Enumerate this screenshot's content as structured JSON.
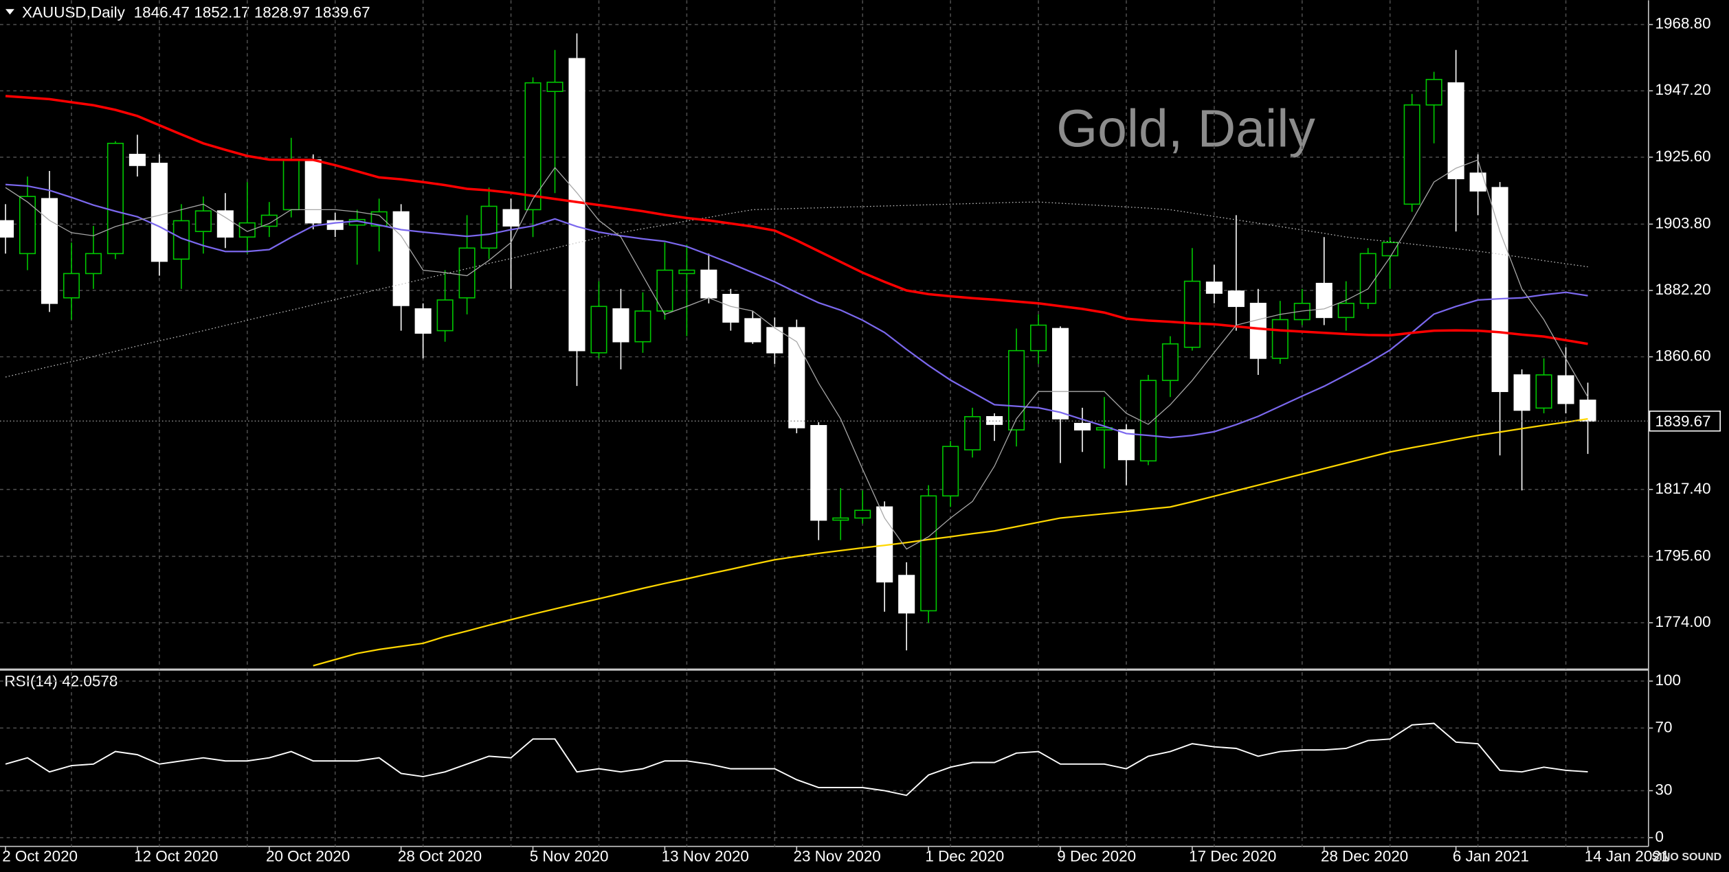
{
  "header": {
    "symbol": "XAUUSD,Daily"
  },
  "watermark": "Gold, Daily",
  "logo": "SINO SOUND",
  "chart_data": [
    {
      "type": "candlestick",
      "title": "XAUUSD,Daily",
      "categories": [
        "2 Oct 2020",
        null,
        null,
        null,
        null,
        null,
        "12 Oct 2020",
        null,
        null,
        null,
        null,
        null,
        "20 Oct 2020",
        null,
        null,
        null,
        null,
        null,
        "28 Oct 2020",
        null,
        null,
        null,
        null,
        null,
        "5 Nov 2020",
        null,
        null,
        null,
        null,
        null,
        "13 Nov 2020",
        null,
        null,
        null,
        null,
        null,
        "23 Nov 2020",
        null,
        null,
        null,
        null,
        null,
        "1 Dec 2020",
        null,
        null,
        null,
        null,
        null,
        "9 Dec 2020",
        null,
        null,
        null,
        null,
        null,
        "17 Dec 2020",
        null,
        null,
        null,
        null,
        null,
        "28 Dec 2020",
        null,
        null,
        null,
        null,
        null,
        "6 Jan 2021",
        null,
        null,
        null,
        null,
        null,
        "14 Jan 2021"
      ],
      "open": [
        1904.9,
        1894.2,
        1912.1,
        1879.8,
        1887.7,
        1894.2,
        1926.5,
        1923.6,
        1892.4,
        1901.4,
        1908.1,
        1899.6,
        1903.1,
        1908.5,
        1924.7,
        1904.9,
        1903.5,
        1903.2,
        1907.8,
        1876.2,
        1869.1,
        1879.8,
        1896.0,
        1908.5,
        1908.5,
        1947.0,
        1957.7,
        1861.9,
        1876.2,
        1865.5,
        1875.5,
        1887.7,
        1888.8,
        1880.9,
        1873.0,
        1870.1,
        1870.1,
        1838.2,
        1807.4,
        1808.1,
        1811.7,
        1789.4,
        1777.9,
        1815.3,
        1830.3,
        1841.1,
        1836.8,
        1862.6,
        1869.8,
        1838.9,
        1836.8,
        1836.8,
        1826.7,
        1852.9,
        1863.7,
        1884.9,
        1882.0,
        1878.0,
        1860.1,
        1872.7,
        1884.5,
        1873.4,
        1878.0,
        1893.5,
        1910.3,
        1942.6,
        1949.8,
        1920.4,
        1915.7,
        1854.7,
        1843.9,
        1854.4,
        1846.47
      ],
      "high": [
        1910.3,
        1919.3,
        1921.1,
        1897.8,
        1903.2,
        1930.8,
        1932.9,
        1926.5,
        1910.3,
        1912.8,
        1913.9,
        1917.5,
        1911.0,
        1931.9,
        1926.5,
        1907.5,
        1908.5,
        1912.1,
        1910.3,
        1878.0,
        1888.8,
        1906.7,
        1915.7,
        1912.1,
        1951.6,
        1960.5,
        1965.9,
        1885.2,
        1882.7,
        1881.6,
        1897.8,
        1897.1,
        1894.2,
        1882.7,
        1875.5,
        1873.4,
        1872.7,
        1839.3,
        1817.8,
        1817.1,
        1813.5,
        1793.7,
        1818.8,
        1833.2,
        1844.0,
        1842.2,
        1869.8,
        1874.4,
        1870.5,
        1844.0,
        1847.5,
        1838.6,
        1854.7,
        1867.3,
        1896.0,
        1890.6,
        1906.7,
        1882.7,
        1878.8,
        1882.7,
        1899.6,
        1885.2,
        1896.0,
        1899.6,
        1946.2,
        1953.4,
        1960.5,
        1926.5,
        1917.5,
        1856.5,
        1860.1,
        1863.7,
        1852.17
      ],
      "low": [
        1894.2,
        1888.8,
        1875.2,
        1872.7,
        1882.7,
        1892.4,
        1919.3,
        1887.0,
        1882.7,
        1894.2,
        1896.0,
        1894.2,
        1899.6,
        1906.0,
        1902.1,
        1899.6,
        1890.6,
        1894.9,
        1869.1,
        1860.1,
        1865.5,
        1874.4,
        1892.4,
        1882.7,
        1899.6,
        1913.9,
        1851.1,
        1860.1,
        1856.5,
        1861.9,
        1872.7,
        1867.3,
        1878.0,
        1869.1,
        1864.8,
        1858.3,
        1835.7,
        1800.9,
        1800.9,
        1806.3,
        1777.6,
        1765.0,
        1774.0,
        1811.7,
        1827.8,
        1833.2,
        1831.4,
        1858.3,
        1826.0,
        1829.6,
        1824.2,
        1818.8,
        1825.3,
        1847.5,
        1862.6,
        1878.0,
        1869.1,
        1854.7,
        1858.3,
        1870.9,
        1870.9,
        1869.1,
        1876.2,
        1882.7,
        1907.8,
        1930.1,
        1901.4,
        1906.7,
        1828.5,
        1817.1,
        1842.2,
        1842.2,
        1828.97
      ],
      "close": [
        1899.6,
        1912.8,
        1878.0,
        1887.7,
        1894.2,
        1930.1,
        1922.9,
        1891.7,
        1904.9,
        1908.1,
        1899.6,
        1904.2,
        1906.7,
        1924.7,
        1904.2,
        1902.1,
        1905.3,
        1907.8,
        1877.3,
        1868.3,
        1879.1,
        1896.0,
        1909.6,
        1903.2,
        1949.8,
        1950.0,
        1862.6,
        1877.0,
        1865.5,
        1875.5,
        1888.8,
        1888.8,
        1879.8,
        1871.9,
        1865.5,
        1861.9,
        1837.5,
        1807.4,
        1808.1,
        1810.6,
        1787.3,
        1777.2,
        1815.3,
        1831.4,
        1841.1,
        1838.6,
        1862.6,
        1870.9,
        1840.4,
        1836.8,
        1837.5,
        1827.1,
        1852.9,
        1864.8,
        1885.2,
        1881.3,
        1877.0,
        1860.1,
        1872.7,
        1878.0,
        1873.4,
        1878.0,
        1894.2,
        1897.8,
        1942.6,
        1950.9,
        1918.6,
        1914.6,
        1849.3,
        1843.2,
        1854.7,
        1845.4,
        1839.67
      ],
      "up_color": "#00c800",
      "down_color": "#ffffff",
      "lines": [
        {
          "color": "#c0c0c0",
          "width": 0.8,
          "style": "dotted",
          "values": [
            1854.0,
            1855.7,
            1857.4,
            1859.0,
            1860.7,
            1862.4,
            1864.1,
            1865.8,
            1867.4,
            1869.1,
            1870.8,
            1872.5,
            1874.2,
            1875.8,
            1877.5,
            1879.2,
            1880.9,
            1882.6,
            1884.2,
            1885.9,
            1887.6,
            1889.3,
            1891.0,
            1892.6,
            1894.3,
            1896.0,
            1897.7,
            1899.4,
            1901.0,
            1902.3,
            1903.5,
            1904.8,
            1906.0,
            1907.3,
            1908.5,
            1908.7,
            1908.9,
            1909.1,
            1909.3,
            1909.5,
            1909.7,
            1909.9,
            1910.1,
            1910.3,
            1910.5,
            1910.7,
            1910.9,
            1911.0,
            1910.6,
            1910.2,
            1909.8,
            1909.4,
            1909.0,
            1908.5,
            1907.4,
            1906.3,
            1905.2,
            1904.1,
            1903.0,
            1901.9,
            1900.8,
            1899.6,
            1898.8,
            1898.1,
            1897.3,
            1896.5,
            1895.8,
            1895.0,
            1894.0,
            1893.0,
            1891.9,
            1890.9,
            1889.9
          ]
        },
        {
          "color": "#ffd700",
          "width": 1.4,
          "style": "solid",
          "values": [
            null,
            null,
            null,
            null,
            null,
            null,
            null,
            null,
            null,
            null,
            null,
            null,
            null,
            null,
            1760.0,
            1762.0,
            1764.0,
            1765.3,
            1766.3,
            1767.3,
            1769.5,
            1771.3,
            1773.2,
            1775.0,
            1776.8,
            1778.5,
            1780.2,
            1781.8,
            1783.5,
            1785.2,
            1786.8,
            1788.3,
            1789.9,
            1791.4,
            1793.0,
            1794.5,
            1795.6,
            1796.6,
            1797.5,
            1798.4,
            1799.2,
            1800.1,
            1801.1,
            1802.0,
            1803.0,
            1803.9,
            1805.3,
            1806.7,
            1808.1,
            1808.8,
            1809.5,
            1810.2,
            1811.0,
            1811.7,
            1813.4,
            1815.2,
            1817.0,
            1818.8,
            1820.6,
            1822.4,
            1824.2,
            1826.0,
            1827.8,
            1829.6,
            1831.0,
            1832.3,
            1833.7,
            1835.0,
            1836.1,
            1837.2,
            1838.3,
            1839.3,
            1840.4
          ]
        },
        {
          "color": "#7b68ee",
          "width": 1.4,
          "style": "solid",
          "values": [
            1916.7,
            1916.2,
            1914.8,
            1912.5,
            1910.0,
            1908.0,
            1906.2,
            1903.0,
            1899.2,
            1896.8,
            1894.9,
            1894.9,
            1895.5,
            1899.5,
            1903.2,
            1904.2,
            1904.8,
            1903.5,
            1902.0,
            1901.2,
            1900.5,
            1899.8,
            1900.5,
            1902.0,
            1903.2,
            1905.5,
            1903.0,
            1901.2,
            1900.0,
            1899.0,
            1898.2,
            1896.5,
            1893.8,
            1891.0,
            1888.0,
            1885.0,
            1881.5,
            1878.2,
            1875.8,
            1872.5,
            1868.5,
            1863.0,
            1857.8,
            1853.0,
            1849.0,
            1845.0,
            1844.5,
            1844.0,
            1842.5,
            1840.2,
            1838.0,
            1835.6,
            1835.0,
            1834.3,
            1835.0,
            1836.2,
            1838.5,
            1841.2,
            1844.5,
            1847.8,
            1851.0,
            1854.7,
            1858.5,
            1862.8,
            1868.5,
            1874.5,
            1877.0,
            1879.1,
            1879.5,
            1879.8,
            1880.8,
            1881.6,
            1880.5
          ]
        },
        {
          "color": "#ff0000",
          "width": 2.2,
          "style": "solid",
          "values": [
            1945.5,
            1945.0,
            1944.5,
            1943.5,
            1942.5,
            1941.0,
            1939.0,
            1936.0,
            1933.0,
            1930.1,
            1928.0,
            1926.0,
            1924.8,
            1924.7,
            1924.7,
            1923.0,
            1921.0,
            1919.0,
            1918.4,
            1917.5,
            1916.5,
            1915.3,
            1914.8,
            1914.0,
            1913.0,
            1912.0,
            1911.0,
            1910.0,
            1909.0,
            1908.0,
            1906.8,
            1905.8,
            1905.0,
            1904.0,
            1903.0,
            1901.7,
            1898.5,
            1895.0,
            1891.5,
            1888.0,
            1885.0,
            1882.2,
            1881.0,
            1880.3,
            1879.7,
            1879.2,
            1878.6,
            1878.0,
            1877.1,
            1876.2,
            1875.0,
            1873.0,
            1872.4,
            1872.0,
            1871.5,
            1871.2,
            1870.5,
            1869.8,
            1869.2,
            1868.8,
            1868.4,
            1868.0,
            1867.7,
            1867.6,
            1868.4,
            1869.1,
            1869.2,
            1869.1,
            1868.6,
            1867.8,
            1867.2,
            1866.0,
            1864.8
          ]
        },
        {
          "color": "#a8a8a8",
          "width": 0.8,
          "style": "solid",
          "values": [
            1915.7,
            1911,
            1905,
            1901,
            1900,
            1903,
            1905,
            1906.7,
            1908.5,
            1910.3,
            1906,
            1901.4,
            1904,
            1908.5,
            1908.5,
            1908.5,
            1907.8,
            1906.7,
            1900,
            1888.8,
            1888,
            1887,
            1892,
            1897.8,
            1912,
            1922.2,
            1914,
            1905,
            1899.6,
            1887,
            1874.4,
            1877,
            1879.8,
            1877,
            1875.5,
            1870,
            1865.5,
            1852,
            1840.4,
            1824,
            1808.1,
            1798,
            1802,
            1808.1,
            1813.5,
            1825,
            1840.4,
            1849.3,
            1849.3,
            1849.3,
            1849.3,
            1842.2,
            1838.6,
            1845,
            1852.9,
            1862,
            1870.9,
            1872.7,
            1874.4,
            1875.5,
            1876.2,
            1879,
            1882.7,
            1893,
            1904.9,
            1917.5,
            1922,
            1924.7,
            1901.4,
            1882.7,
            1872.7,
            1860,
            1847.5
          ]
        }
      ],
      "ylim": [
        1758.93,
        1976.69
      ],
      "yticks": [
        {
          "value": 1968.8,
          "label": "1968.80"
        },
        {
          "value": 1947.2,
          "label": "1947.20"
        },
        {
          "value": 1925.6,
          "label": "1925.60"
        },
        {
          "value": 1903.8,
          "label": "1903.80"
        },
        {
          "value": 1882.2,
          "label": "1882.20"
        },
        {
          "value": 1860.6,
          "label": "1860.60"
        },
        {
          "value": 1817.4,
          "label": "1817.40"
        },
        {
          "value": 1795.6,
          "label": "1795.60"
        },
        {
          "value": 1774,
          "label": "1774.00"
        }
      ],
      "grid": true,
      "last_price_line": true
    },
    {
      "type": "line",
      "title": "RSI(14)",
      "color": "#ffffff",
      "values": [
        47,
        51,
        42,
        46,
        47,
        55,
        53,
        47,
        49,
        51,
        49,
        49,
        51,
        55,
        49,
        49,
        49,
        51,
        41,
        39,
        42,
        47,
        52,
        51,
        63,
        63,
        42,
        44,
        42,
        44,
        49,
        49,
        47,
        44,
        44,
        44,
        37,
        32,
        32,
        32,
        30,
        27,
        40,
        45,
        48,
        48,
        54,
        55,
        47,
        47,
        47,
        44,
        52,
        55,
        60,
        58,
        57,
        52,
        55,
        56,
        56,
        57,
        62,
        63,
        72,
        73,
        61,
        60,
        43,
        42,
        45,
        43,
        42.0578
      ],
      "ylim": [
        -5.6,
        105.6
      ],
      "yticks": [
        0,
        30,
        70,
        100
      ],
      "grid": true
    }
  ]
}
